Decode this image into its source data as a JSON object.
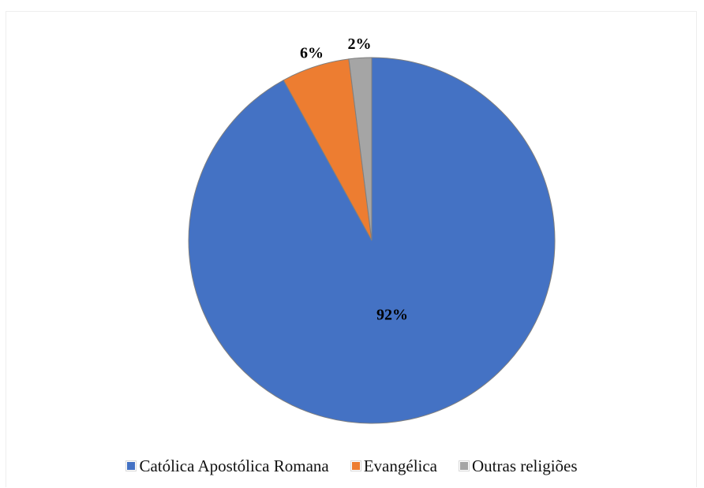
{
  "chart_data": {
    "type": "pie",
    "title": "",
    "start_angle_deg": 0,
    "direction": "clockwise",
    "legend_position": "bottom",
    "slices": [
      {
        "label": "Católica Apostólica Romana",
        "value": 92,
        "display": "92%",
        "color": "#4472C4"
      },
      {
        "label": "Evangélica",
        "value": 6,
        "display": "6%",
        "color": "#ED7D31"
      },
      {
        "label": "Outras religiões",
        "value": 2,
        "display": "2%",
        "color": "#A5A5A5"
      }
    ]
  }
}
